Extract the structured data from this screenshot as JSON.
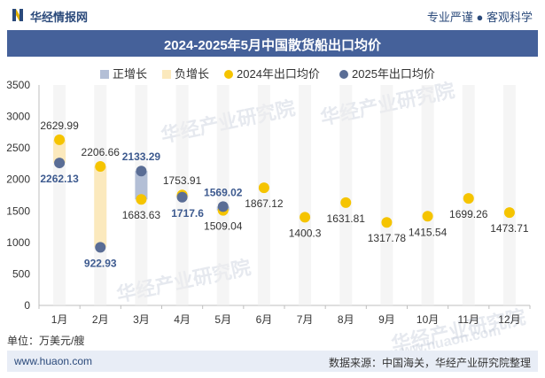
{
  "header": {
    "brand": "华经情报网",
    "slogan": "专业严谨 ● 客观科学"
  },
  "chart_data": {
    "type": "line",
    "title": "2024-2025年5月中国散货船出口均价",
    "categories": [
      "1月",
      "2月",
      "3月",
      "4月",
      "5月",
      "6月",
      "7月",
      "8月",
      "9月",
      "10月",
      "11月",
      "12月"
    ],
    "series": [
      {
        "name": "2024年出口均价",
        "color": "#f5c400",
        "values": [
          2629.99,
          2206.66,
          1683.63,
          1753.91,
          1509.04,
          1867.12,
          1400.3,
          1631.81,
          1317.78,
          1415.54,
          1699.26,
          1473.71
        ]
      },
      {
        "name": "2025年出口均价",
        "color": "#5a6d95",
        "values": [
          2262.13,
          922.93,
          2133.29,
          1717.6,
          1569.02,
          null,
          null,
          null,
          null,
          null,
          null,
          null
        ]
      }
    ],
    "change_legend": [
      {
        "name": "正增长",
        "color": "#b3bfd6"
      },
      {
        "name": "负增长",
        "color": "#fbe9bd"
      }
    ],
    "labels_2024": [
      "2629.99",
      "2206.66",
      "1683.63",
      "1753.91",
      "1509.04",
      "1867.12",
      "1400.3",
      "1631.81",
      "1317.78",
      "1415.54",
      "1699.26",
      "1473.71"
    ],
    "labels_2025": [
      "2262.13",
      "922.93",
      "2133.29",
      "1717.6",
      "1569.02"
    ],
    "ylim": [
      0,
      3500
    ],
    "yticks": [
      0,
      500,
      1000,
      1500,
      2000,
      2500,
      3000,
      3500
    ],
    "grid": false
  },
  "unit": "单位：万美元/艘",
  "footer": {
    "site": "www.huaon.com",
    "source": "数据来源：中国海关，华经产业研究院整理"
  },
  "watermark": {
    "cn": "华经产业研究院",
    "en": "www.huaon.com"
  }
}
